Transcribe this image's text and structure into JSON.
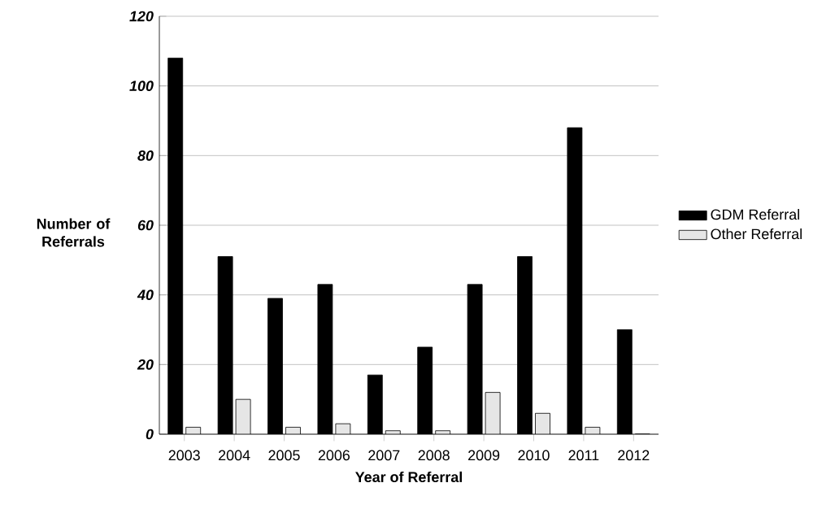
{
  "chart_data": {
    "type": "bar",
    "xlabel": "Year of Referral",
    "ylabel": "Number of Referrals",
    "categories": [
      "2003",
      "2004",
      "2005",
      "2006",
      "2007",
      "2008",
      "2009",
      "2010",
      "2011",
      "2012"
    ],
    "series": [
      {
        "name": "GDM Referral",
        "color": "#000000",
        "values": [
          108,
          51,
          39,
          43,
          17,
          25,
          43,
          51,
          88,
          30
        ]
      },
      {
        "name": "Other Referral",
        "color": "#e6e6e6",
        "values": [
          2,
          10,
          2,
          3,
          1,
          1,
          12,
          6,
          2,
          0
        ]
      }
    ],
    "ylim": [
      0,
      120
    ],
    "yticks": [
      0,
      20,
      40,
      60,
      80,
      100,
      120
    ],
    "grid": "y",
    "legend": "right"
  }
}
